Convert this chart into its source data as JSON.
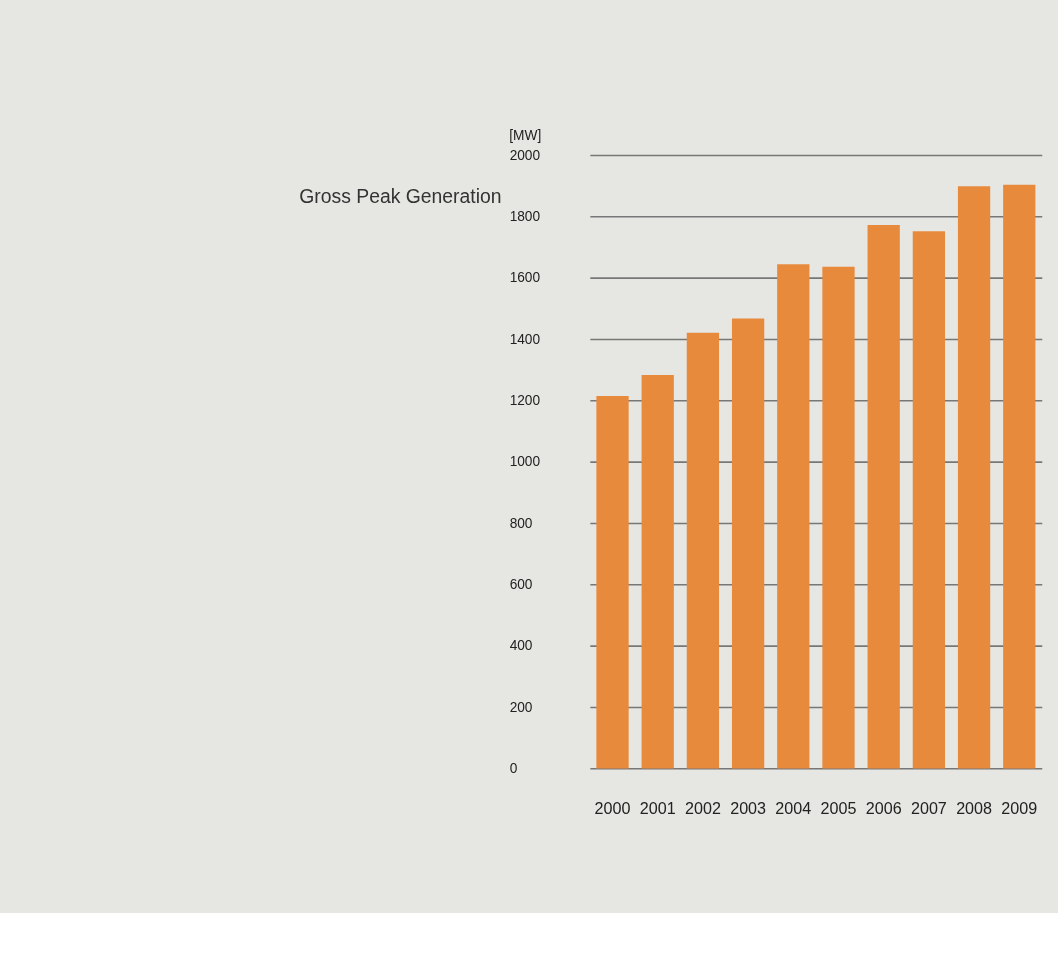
{
  "chart_data": {
    "type": "bar",
    "ylabel": "Gross Peak Generation",
    "annotations": [
      "[MW]"
    ],
    "categories": [
      "2000",
      "2001",
      "2002",
      "2003",
      "2004",
      "2005",
      "2006",
      "2007",
      "2008",
      "2009"
    ],
    "values": [
      1214,
      1283,
      1421,
      1467,
      1644,
      1636,
      1772,
      1752,
      1898,
      1903
    ],
    "color": "#e88a3c",
    "ylim": [
      0,
      2000
    ],
    "yticks": [
      0,
      200,
      400,
      600,
      800,
      1000,
      1200,
      1400,
      1600,
      1800,
      2000
    ],
    "grid": "y"
  }
}
